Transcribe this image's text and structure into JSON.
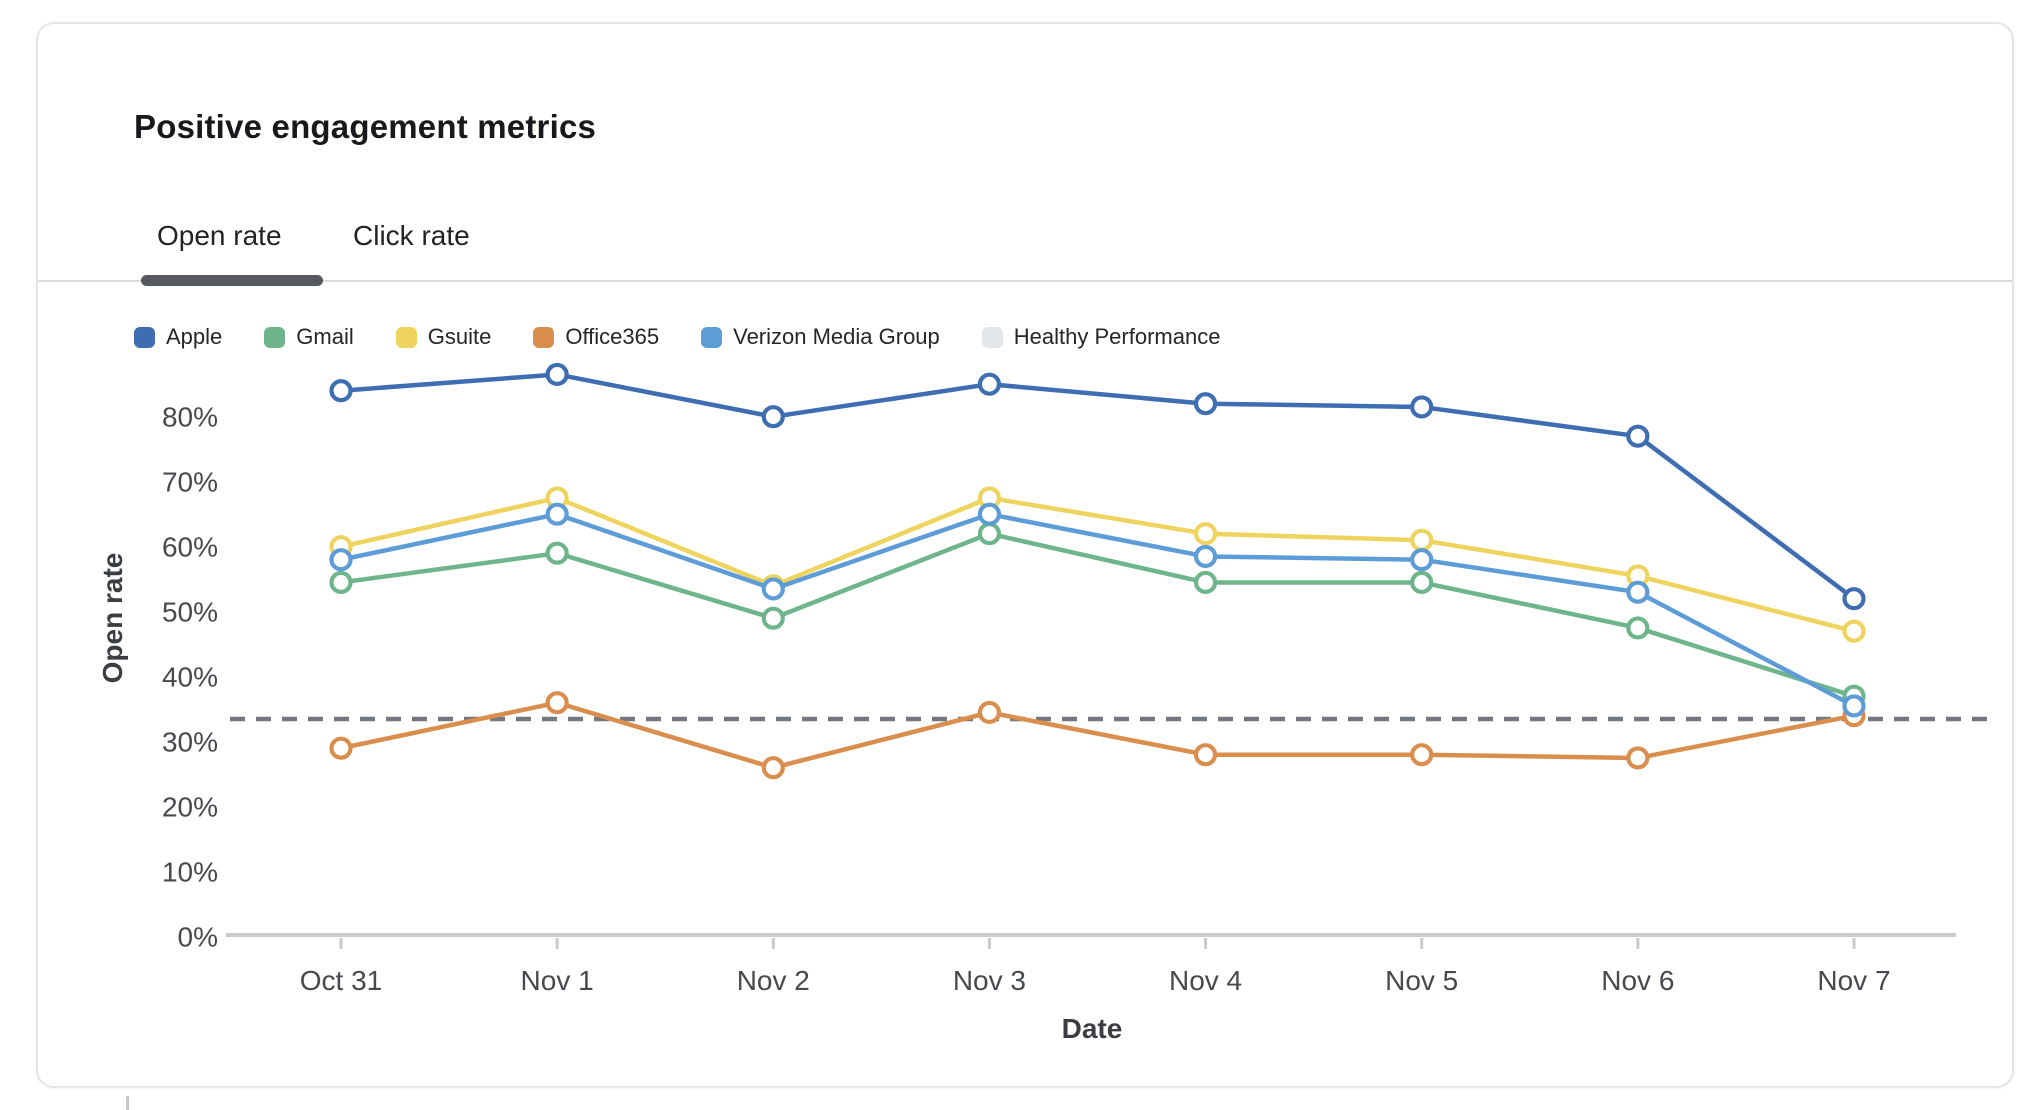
{
  "card": {
    "title": "Positive engagement metrics",
    "tabs": [
      {
        "label": "Open rate",
        "active": true
      },
      {
        "label": "Click rate",
        "active": false
      }
    ]
  },
  "chart_data": {
    "type": "line",
    "x": [
      "Oct 31",
      "Nov 1",
      "Nov 2",
      "Nov 3",
      "Nov 4",
      "Nov 5",
      "Nov 6",
      "Nov 7"
    ],
    "xlabel": "Date",
    "ylabel": "Open rate",
    "ytick_labels": [
      "0%",
      "10%",
      "20%",
      "30%",
      "40%",
      "50%",
      "60%",
      "70%",
      "80%"
    ],
    "ylim": [
      0,
      90
    ],
    "grid": false,
    "legend_position": "top-left",
    "marker": "open-circle",
    "series": [
      {
        "name": "Apple",
        "color": "#3F6DB1",
        "values": [
          84,
          86.5,
          80,
          85,
          82,
          81.5,
          77,
          52
        ]
      },
      {
        "name": "Gmail",
        "color": "#6FB58C",
        "values": [
          54.5,
          59,
          49,
          62,
          54.5,
          54.5,
          47.5,
          37
        ]
      },
      {
        "name": "Gsuite",
        "color": "#EFD35F",
        "values": [
          60,
          67.5,
          54,
          67.5,
          62,
          61,
          55.5,
          47
        ]
      },
      {
        "name": "Office365",
        "color": "#DA8E4D",
        "values": [
          29,
          36,
          26,
          34.5,
          28,
          28,
          27.5,
          34
        ]
      },
      {
        "name": "Verizon Media Group",
        "color": "#5E9CD8",
        "values": [
          58,
          65,
          53.5,
          65,
          58.5,
          58,
          53,
          35.5
        ]
      },
      {
        "name": "Healthy Performance",
        "color": "#E4E7EA",
        "style": "dashed",
        "line_color": "#73777F",
        "value": 33.5
      }
    ],
    "draw_order": [
      "Healthy Performance",
      "Gsuite",
      "Gmail",
      "Office365",
      "Verizon Media Group",
      "Apple"
    ]
  }
}
